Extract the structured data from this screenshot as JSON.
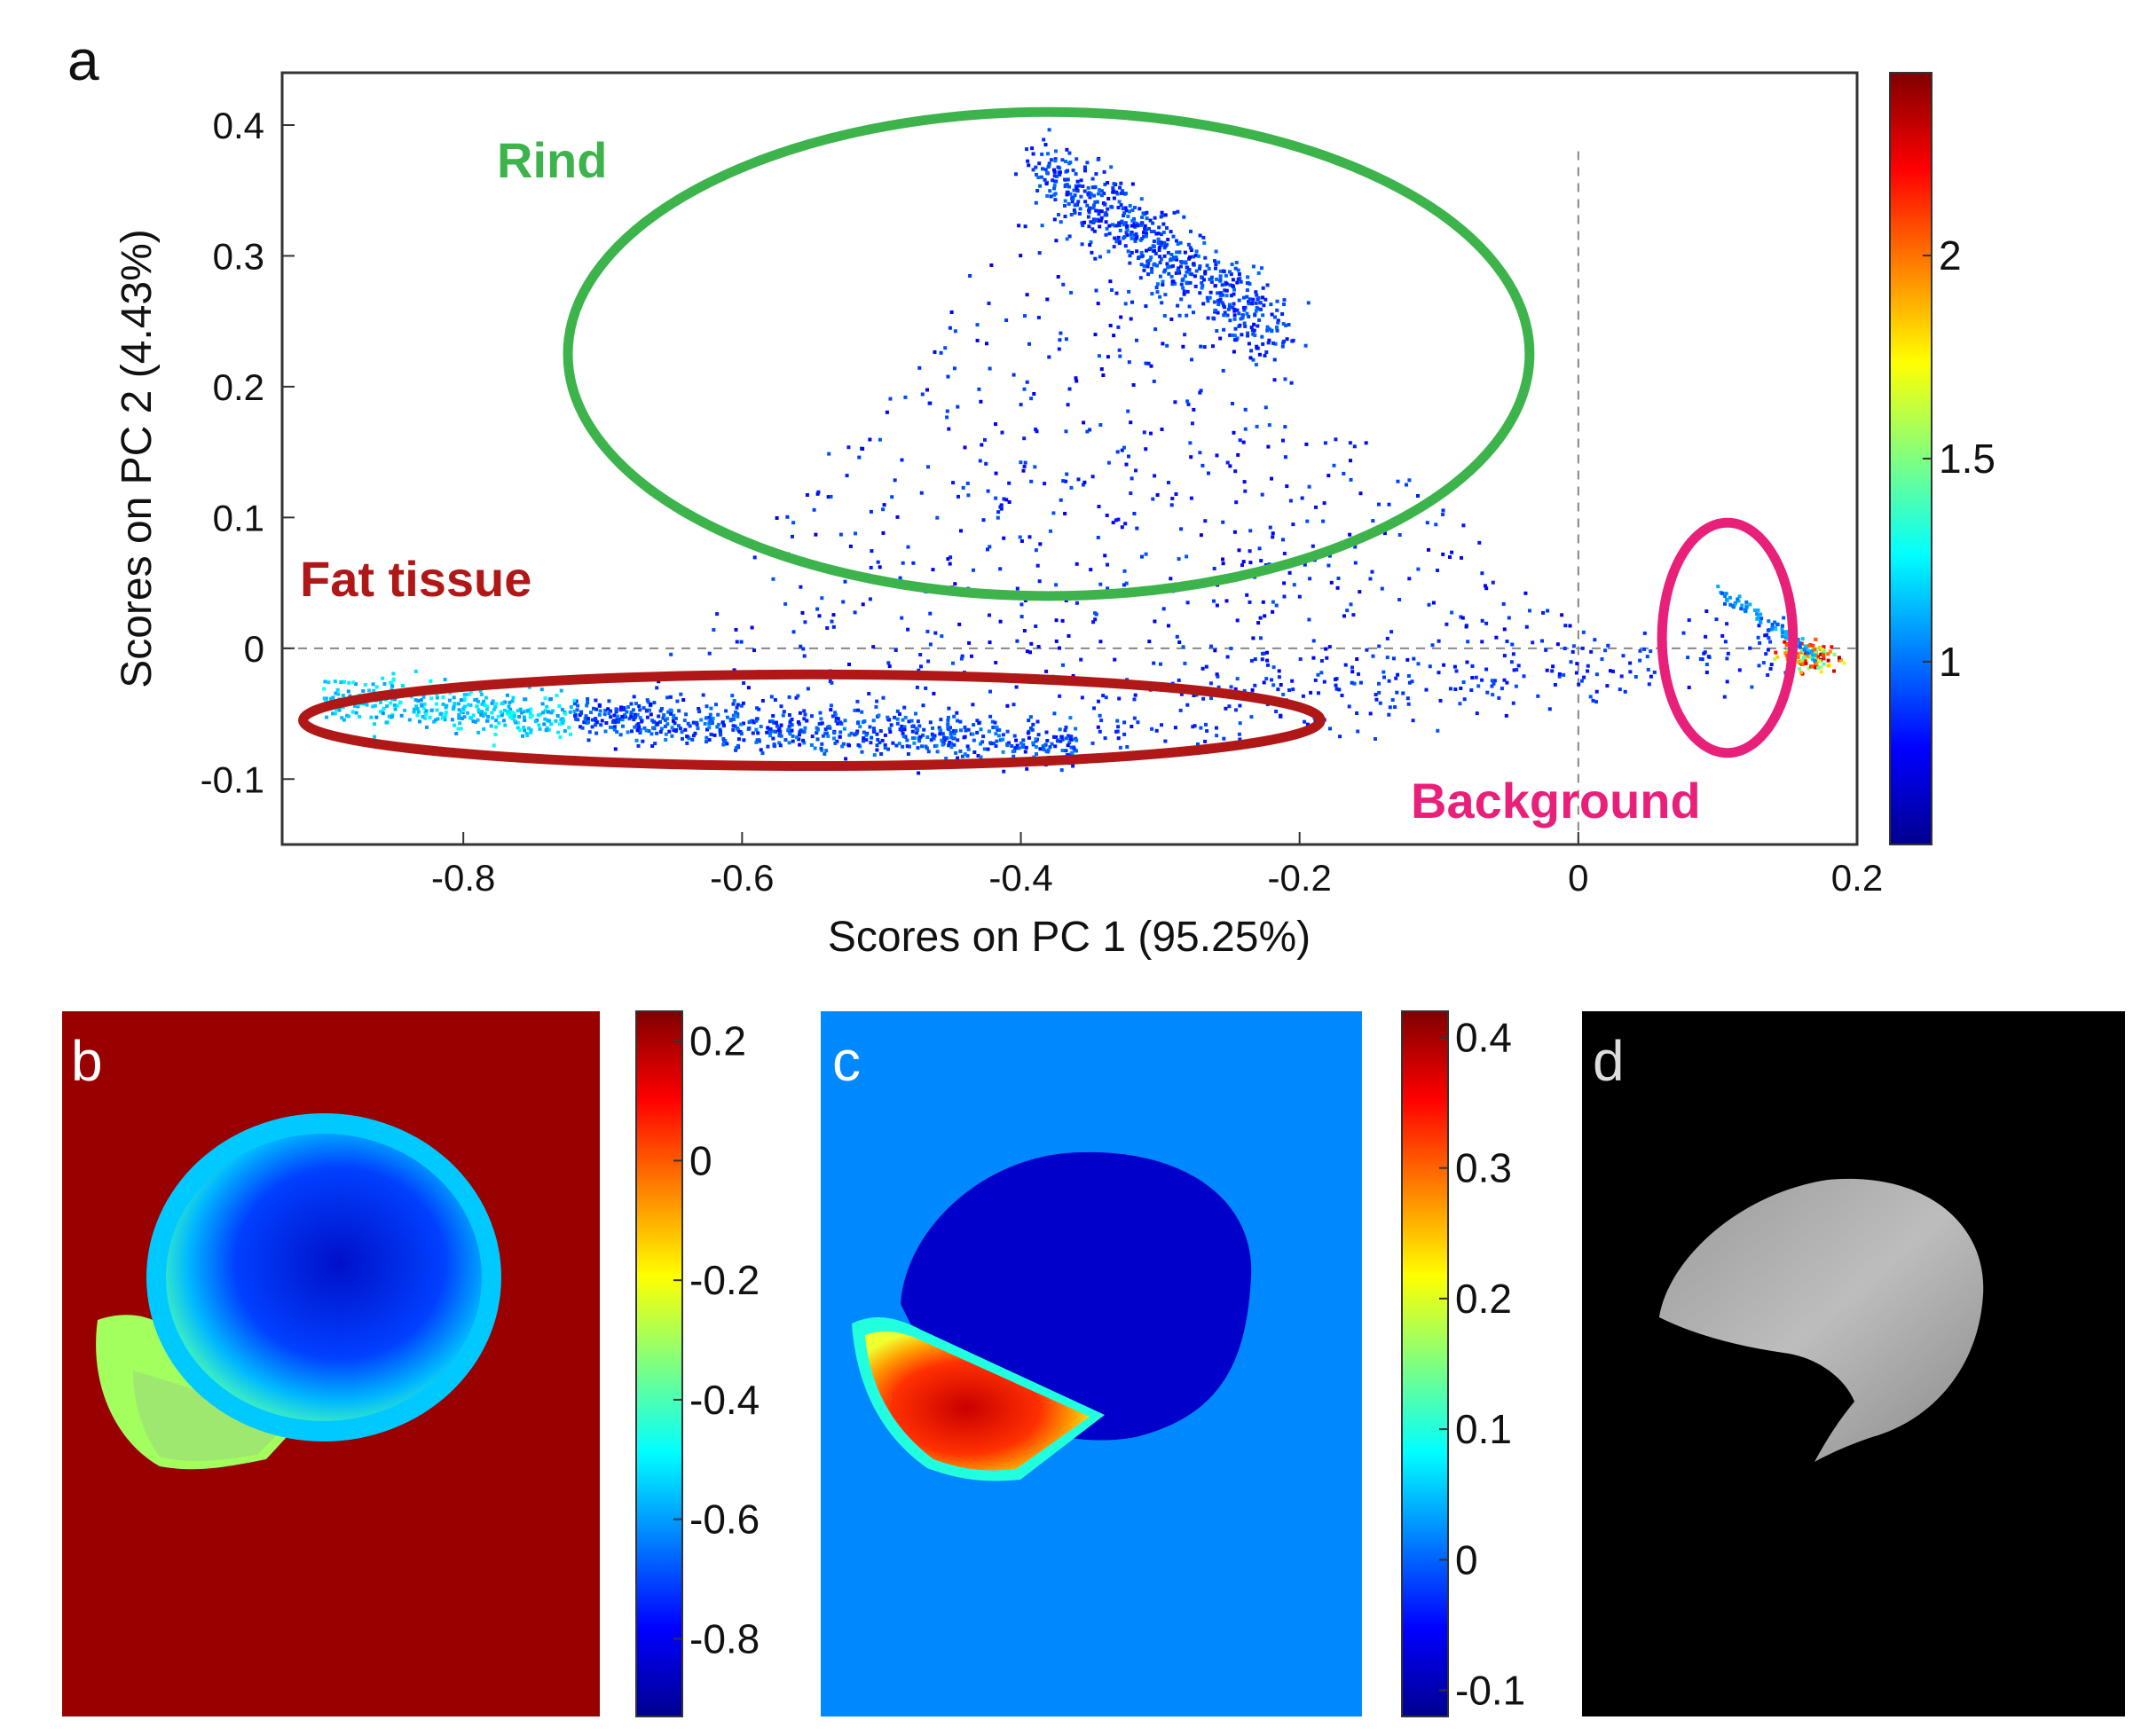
{
  "chart_data": [
    {
      "id": "a",
      "type": "scatter",
      "panel_label": "a",
      "title": "",
      "xlabel": "Scores on PC 1 (95.25%)",
      "ylabel": "Scores on PC 2 (4.43%)",
      "xlim": [
        -0.93,
        0.2
      ],
      "ylim": [
        -0.15,
        0.44
      ],
      "xticks": [
        "-0.8",
        "-0.6",
        "-0.4",
        "-0.2",
        "0",
        "0.2"
      ],
      "xtick_values": [
        -0.8,
        -0.6,
        -0.4,
        -0.2,
        0,
        0.2
      ],
      "yticks": [
        "-0.1",
        "0",
        "0.1",
        "0.2",
        "0.3",
        "0.4"
      ],
      "ytick_values": [
        -0.1,
        0,
        0.1,
        0.2,
        0.3,
        0.4
      ],
      "reference_lines": {
        "x": 0,
        "y": 0,
        "style": "dashed"
      },
      "colorbar": {
        "min": 0.55,
        "max": 2.45,
        "ticks": [
          "1",
          "1.5",
          "2"
        ],
        "tick_values": [
          1,
          1.5,
          2
        ],
        "colormap": "jet"
      },
      "clusters": [
        {
          "name": "Rind",
          "center": [
            -0.3,
            0.29
          ],
          "spread": [
            0.08,
            0.05
          ],
          "density": 1.0
        },
        {
          "name": "Fat tissue",
          "center": [
            -0.55,
            -0.06
          ],
          "spread": [
            0.2,
            0.02
          ],
          "density": 1.6
        },
        {
          "name": "Background",
          "center": [
            0.17,
            -0.005
          ],
          "spread": [
            0.012,
            0.008
          ],
          "density": 2.3
        }
      ],
      "annotations": [
        {
          "text": "Rind",
          "color": "#3cb44b",
          "ellipse_center": [
            -0.38,
            0.225
          ],
          "ellipse_radii": [
            0.345,
            0.185
          ]
        },
        {
          "text": "Fat tissue",
          "color": "#b01818",
          "ellipse_center": [
            -0.55,
            -0.055
          ],
          "ellipse_radii": [
            0.365,
            0.035
          ]
        },
        {
          "text": "Background",
          "color": "#e8207a",
          "ellipse_center": [
            0.107,
            0.008
          ],
          "ellipse_radii": [
            0.047,
            0.088
          ]
        }
      ]
    },
    {
      "id": "b",
      "type": "heatmap",
      "panel_label": "b",
      "colorbar": {
        "min": -0.93,
        "max": 0.25,
        "ticks": [
          "0.2",
          "0",
          "-0.2",
          "-0.4",
          "-0.6",
          "-0.8"
        ],
        "tick_values": [
          0.2,
          0,
          -0.2,
          -0.4,
          -0.6,
          -0.8
        ],
        "colormap": "jet"
      },
      "regions": [
        {
          "name": "background",
          "value": 0.22
        },
        {
          "name": "rind",
          "value": -0.85
        },
        {
          "name": "rind-edge",
          "value": -0.55
        },
        {
          "name": "fat",
          "value": -0.3
        }
      ]
    },
    {
      "id": "c",
      "type": "heatmap",
      "panel_label": "c",
      "colorbar": {
        "min": -0.12,
        "max": 0.42,
        "ticks": [
          "0.4",
          "0.3",
          "0.2",
          "0.1",
          "0",
          "-0.1"
        ],
        "tick_values": [
          0.4,
          0.3,
          0.2,
          0.1,
          0,
          -0.1
        ],
        "colormap": "jet"
      },
      "regions": [
        {
          "name": "background",
          "value": 0.02
        },
        {
          "name": "rind",
          "value": -0.08
        },
        {
          "name": "fat",
          "value": 0.33
        },
        {
          "name": "fat-edge",
          "value": 0.1
        }
      ]
    },
    {
      "id": "d",
      "type": "image",
      "panel_label": "d",
      "regions": [
        {
          "name": "background",
          "value": 0
        },
        {
          "name": "rind-mask",
          "value": 0.7
        }
      ]
    }
  ]
}
